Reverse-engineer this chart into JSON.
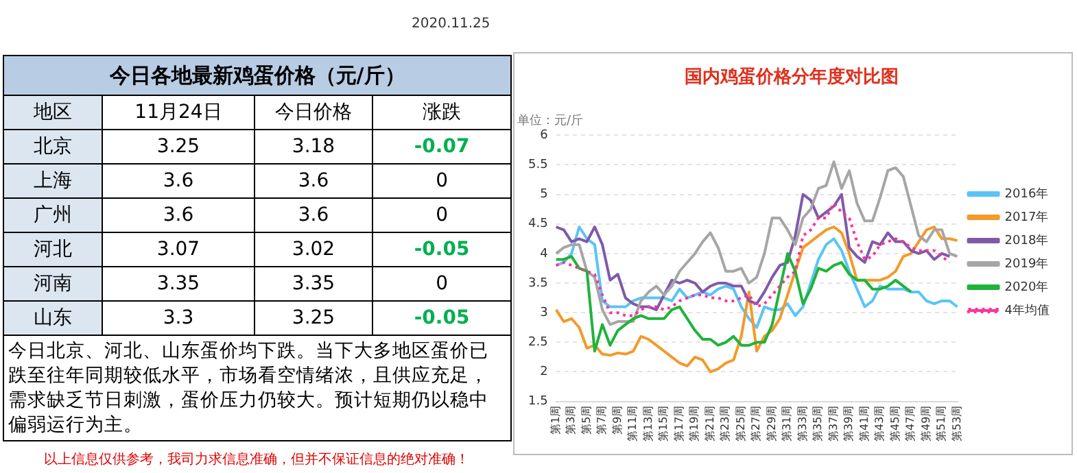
{
  "chart_data": [
    {
      "type": "other",
      "title": "今日各地最新鸡蛋价格（元/斤）",
      "ylabel": "地区",
      "categories": [
        "11月24日",
        "今日价格",
        "涨跌"
      ],
      "y_categories": [
        "北京",
        "上海",
        "广州",
        "河北",
        "河南",
        "山东"
      ],
      "cell_labels": [
        [
          "3.25",
          "3.18",
          "-0.07"
        ],
        [
          "3.6",
          "3.6",
          "0"
        ],
        [
          "3.6",
          "3.6",
          "0"
        ],
        [
          "3.07",
          "3.02",
          "-0.05"
        ],
        [
          "3.35",
          "3.35",
          "0"
        ],
        [
          "3.3",
          "3.25",
          "-0.05"
        ]
      ],
      "annotations": [
        "2020.11.25",
        "今日北京、河北、山东蛋价均下跌。当下大多地区蛋价已跌至往年同期较低水平，市场看空情绪浓，且供应充足，需求缺乏节日刺激，蛋价压力仍较大。预计短期仍以稳中偏弱运行为主。",
        "以上信息仅供参考，我司力求信息准确，但并不保证信息的绝对准确！"
      ]
    },
    {
      "type": "line",
      "title": "国内鸡蛋价格分年度对比图",
      "ylabel": "单位：元/斤",
      "categories": [
        "第1周",
        null,
        "第3周",
        null,
        "第5周",
        null,
        "第7周",
        null,
        "第9周",
        null,
        "第11周",
        null,
        "第13周",
        null,
        "第15周",
        null,
        "第17周",
        null,
        "第19周",
        null,
        "第21周",
        null,
        "第23周",
        null,
        "第25周",
        null,
        "第27周",
        null,
        "第29周",
        null,
        "第31周",
        null,
        "第33周",
        null,
        "第35周",
        null,
        "第37周",
        null,
        "第39周",
        null,
        "第41周",
        null,
        "第43周",
        null,
        "第45周",
        null,
        "第47周",
        null,
        "第49周",
        null,
        "第51周",
        null,
        "第53周"
      ],
      "ylim": [
        1.5,
        6
      ],
      "yticks": [
        1.5,
        2,
        2.5,
        3,
        3.5,
        4,
        4.5,
        5,
        5.5,
        6
      ],
      "grid": "y",
      "legend": "right",
      "marker": "none",
      "series": [
        {
          "name": "2016年",
          "color": "#5bc4f5",
          "values": [
            3.8,
            3.85,
            4.0,
            4.45,
            4.25,
            4.15,
            3.2,
            3.1,
            3.1,
            3.1,
            3.2,
            3.25,
            3.25,
            3.25,
            3.25,
            3.2,
            3.4,
            3.25,
            3.3,
            3.35,
            3.3,
            3.4,
            3.45,
            3.4,
            3.1,
            2.9,
            2.75,
            3.1,
            3.05,
            3.05,
            3.15,
            2.95,
            3.1,
            3.5,
            3.9,
            4.15,
            4.25,
            4.05,
            3.7,
            3.4,
            3.1,
            3.2,
            3.45,
            3.4,
            3.4,
            3.4,
            3.35,
            3.35,
            3.2,
            3.15,
            3.2,
            3.2,
            3.1
          ]
        },
        {
          "name": "2017年",
          "color": "#f39a2a",
          "values": [
            3.05,
            2.85,
            2.9,
            2.75,
            2.4,
            2.45,
            2.3,
            2.28,
            2.32,
            2.3,
            2.35,
            2.6,
            2.55,
            2.45,
            2.35,
            2.25,
            2.15,
            2.1,
            2.25,
            2.2,
            2.0,
            2.05,
            2.15,
            2.2,
            2.6,
            3.35,
            2.35,
            2.6,
            2.7,
            2.9,
            3.3,
            3.7,
            4.1,
            4.2,
            4.3,
            4.4,
            4.45,
            4.35,
            4.0,
            3.55,
            3.55,
            3.55,
            3.55,
            3.6,
            3.7,
            3.95,
            4.0,
            4.2,
            4.4,
            4.45,
            4.25,
            4.25,
            4.22
          ]
        },
        {
          "name": "2018年",
          "color": "#7f5aa8",
          "values": [
            4.45,
            4.4,
            4.2,
            4.25,
            4.2,
            4.45,
            4.15,
            3.55,
            3.65,
            3.25,
            3.15,
            3.1,
            3.1,
            3.05,
            3.3,
            3.55,
            3.5,
            3.55,
            3.5,
            3.35,
            3.45,
            3.5,
            3.5,
            3.45,
            3.45,
            3.2,
            3.15,
            3.35,
            3.6,
            3.8,
            3.85,
            4.3,
            5.0,
            4.9,
            4.6,
            4.7,
            4.8,
            5.0,
            4.1,
            3.95,
            3.85,
            4.2,
            4.15,
            4.35,
            4.2,
            4.2,
            4.05,
            4.0,
            4.05,
            3.9,
            4.0,
            3.95,
            null
          ]
        },
        {
          "name": "2019年",
          "color": "#a6a6a6",
          "values": [
            4.0,
            4.1,
            4.15,
            4.15,
            3.7,
            3.6,
            3.05,
            2.8,
            2.85,
            2.85,
            2.85,
            3.2,
            3.35,
            3.45,
            3.3,
            3.45,
            3.7,
            3.85,
            4.0,
            4.2,
            4.35,
            4.1,
            3.7,
            3.7,
            3.75,
            3.5,
            3.6,
            4.0,
            4.6,
            4.6,
            4.4,
            4.15,
            4.6,
            4.75,
            5.1,
            5.15,
            5.55,
            5.1,
            5.4,
            4.85,
            4.55,
            4.55,
            4.95,
            5.4,
            5.45,
            5.3,
            4.8,
            4.3,
            4.2,
            4.4,
            4.4,
            4.0,
            3.95
          ]
        },
        {
          "name": "2020年",
          "color": "#1fb33a",
          "values": [
            3.9,
            3.9,
            3.95,
            3.75,
            3.7,
            2.35,
            2.8,
            2.45,
            2.7,
            2.8,
            2.9,
            2.95,
            2.9,
            2.9,
            2.9,
            3.05,
            3.1,
            2.9,
            2.7,
            2.55,
            2.55,
            2.45,
            2.5,
            2.6,
            2.45,
            2.45,
            2.5,
            2.5,
            2.8,
            3.4,
            4.0,
            3.7,
            3.15,
            3.4,
            3.75,
            3.7,
            3.8,
            3.85,
            3.65,
            3.55,
            3.55,
            3.4,
            3.4,
            3.45,
            3.55,
            3.45,
            3.35,
            null,
            null,
            null,
            null,
            null,
            null
          ]
        },
        {
          "name": "4年均值",
          "color": "#ff3399",
          "line_style": "dotted",
          "values": [
            3.8,
            3.85,
            3.8,
            3.75,
            3.7,
            3.65,
            3.3,
            3.0,
            3.0,
            2.95,
            2.95,
            3.05,
            3.1,
            3.1,
            3.05,
            3.1,
            3.2,
            3.25,
            3.3,
            3.3,
            3.25,
            3.25,
            3.2,
            3.2,
            3.25,
            3.3,
            3.1,
            3.15,
            3.3,
            3.45,
            3.6,
            3.7,
            4.3,
            4.4,
            4.6,
            4.6,
            4.85,
            4.7,
            4.6,
            4.2,
            3.9,
            3.95,
            4.15,
            4.2,
            4.25,
            4.2,
            4.1,
            4.05,
            4.05,
            4.05,
            3.95,
            3.85,
            null
          ]
        }
      ]
    }
  ]
}
